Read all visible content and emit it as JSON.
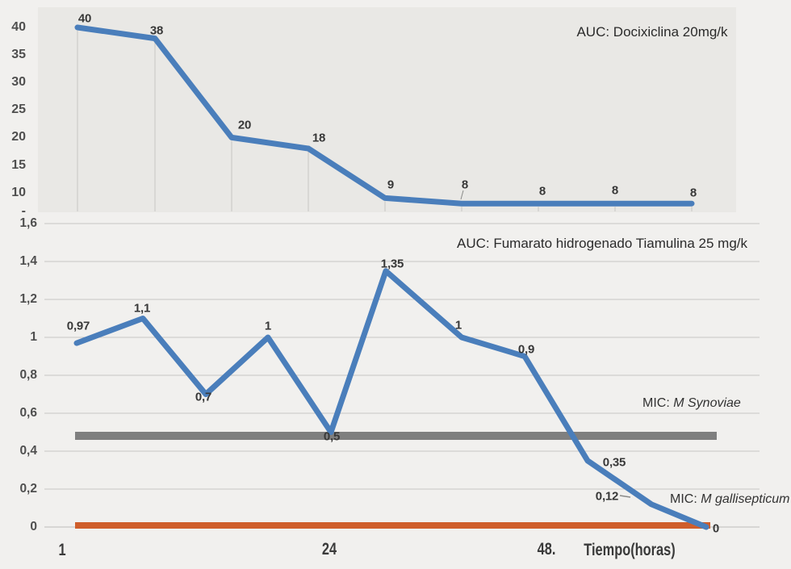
{
  "page": {
    "background": "#f1f0ee"
  },
  "chart_data": [
    {
      "type": "line",
      "title": "AUC: Docixiclina 20mg/k",
      "yticks": [
        "40",
        "35",
        "30",
        "25",
        "20",
        "15",
        "10"
      ],
      "y_axis_bottom_cropped_label": "-",
      "grid": "vertical-droplines",
      "legend_position": "none",
      "plot_bg": "#e9e8e5",
      "series": [
        {
          "name": "AUC: Docixiclina 20mg/k",
          "color": "#4a7ebb",
          "values": [
            40,
            38,
            20,
            18,
            9,
            8,
            8,
            8,
            8
          ],
          "data_labels": [
            "40",
            "38",
            "20",
            "18",
            "9",
            "8",
            "8",
            "8",
            "8"
          ]
        }
      ]
    },
    {
      "type": "line",
      "title": "AUC: Fumarato hidrogenado Tiamulina 25 mg/k",
      "ylim": [
        0,
        1.6
      ],
      "yticks": [
        "1,6",
        "1,4",
        "1,2",
        "1",
        "0,8",
        "0,6",
        "0,4",
        "0,2",
        "0"
      ],
      "xticks": [
        "1",
        "24",
        "48."
      ],
      "xaxis_title": "Tiempo(horas)",
      "grid": "horizontal",
      "legend_position": "none",
      "series": [
        {
          "name": "AUC: Fumarato hidrogenado Tiamulina 25 mg/k",
          "color": "#4a7ebb",
          "values": [
            0.97,
            1.1,
            0.7,
            1,
            0.5,
            1.35,
            1,
            0.9,
            0.35,
            0.12,
            0
          ],
          "data_labels": [
            "0,97",
            "1,1",
            "0,7",
            "1",
            "0,5",
            "1,35",
            "1",
            "0,9",
            "0,35",
            "0,12",
            "0"
          ]
        },
        {
          "name": "MIC: M Synoviae",
          "color": "#7f7f7f",
          "hline_value": 0.5,
          "label_prefix": "MIC: ",
          "label_italic": "M Synoviae"
        },
        {
          "name": "MIC: M gallisepticum",
          "color": "#cf5e2b",
          "hline_value": 0.01,
          "label_prefix": "MIC: ",
          "label_italic": "M gallisepticum"
        }
      ]
    }
  ]
}
